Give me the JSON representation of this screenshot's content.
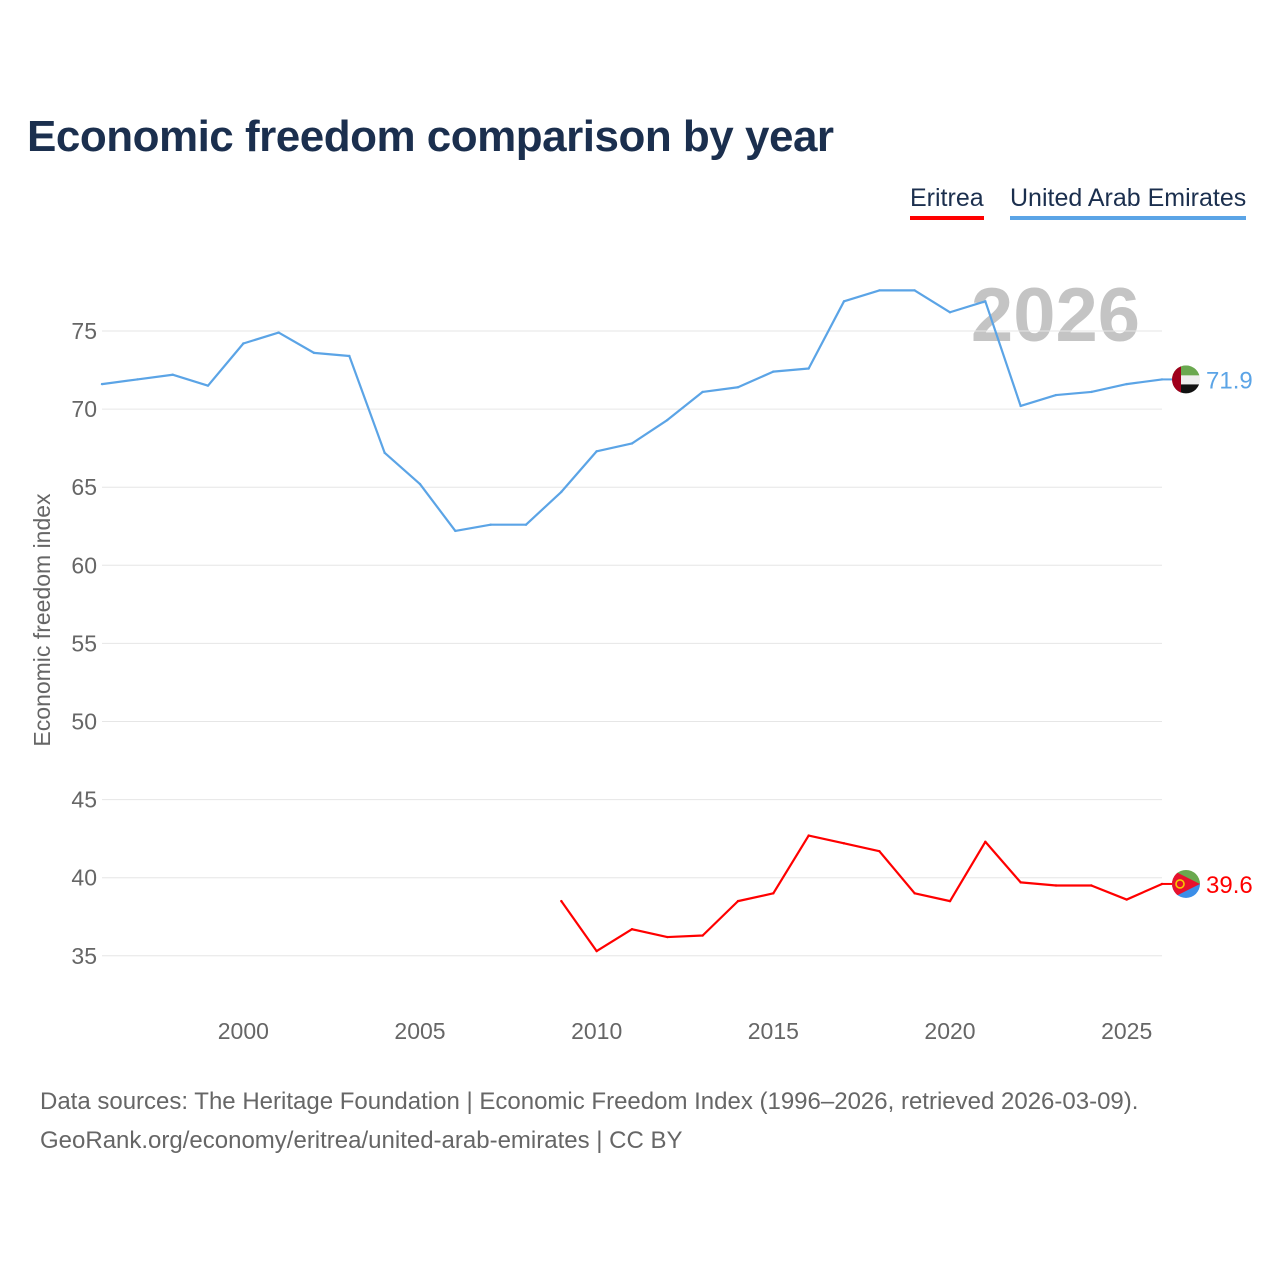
{
  "chart_data": {
    "type": "line",
    "title": "Economic freedom comparison by year",
    "xlabel": "",
    "ylabel": "Economic freedom index",
    "xlim": [
      1996,
      2026
    ],
    "ylim": [
      32,
      79
    ],
    "yticks": [
      35,
      40,
      45,
      50,
      55,
      60,
      65,
      70,
      75
    ],
    "xticks": [
      2000,
      2005,
      2010,
      2015,
      2020,
      2025
    ],
    "grid": true,
    "legend_position": "top-right",
    "watermark_year": "2026",
    "series": [
      {
        "name": "Eritrea",
        "color": "#ff0000",
        "end_label": "39.6",
        "x": [
          2009,
          2010,
          2011,
          2012,
          2013,
          2014,
          2015,
          2016,
          2017,
          2018,
          2019,
          2020,
          2021,
          2022,
          2023,
          2024,
          2025,
          2026
        ],
        "values": [
          38.5,
          35.3,
          36.7,
          36.2,
          36.3,
          38.5,
          39.0,
          42.7,
          42.2,
          41.7,
          39.0,
          38.5,
          42.3,
          39.7,
          39.5,
          39.5,
          38.6,
          39.6
        ]
      },
      {
        "name": "United Arab Emirates",
        "color": "#5ba4e6",
        "end_label": "71.9",
        "x": [
          1996,
          1997,
          1998,
          1999,
          2000,
          2001,
          2002,
          2003,
          2004,
          2005,
          2006,
          2007,
          2008,
          2009,
          2010,
          2011,
          2012,
          2013,
          2014,
          2015,
          2016,
          2017,
          2018,
          2019,
          2020,
          2021,
          2022,
          2023,
          2024,
          2025,
          2026
        ],
        "values": [
          71.6,
          71.9,
          72.2,
          71.5,
          74.2,
          74.9,
          73.6,
          73.4,
          67.2,
          65.2,
          62.2,
          62.6,
          62.6,
          64.7,
          67.3,
          67.8,
          69.3,
          71.1,
          71.4,
          72.4,
          72.6,
          76.9,
          77.6,
          77.6,
          76.2,
          76.9,
          70.2,
          70.9,
          71.1,
          71.6,
          71.9
        ]
      }
    ]
  },
  "footer": {
    "line1": "Data sources: The Heritage Foundation | Economic Freedom Index (1996–2026, retrieved 2026-03-09).",
    "line2": "GeoRank.org/economy/eritrea/united-arab-emirates | CC BY"
  }
}
